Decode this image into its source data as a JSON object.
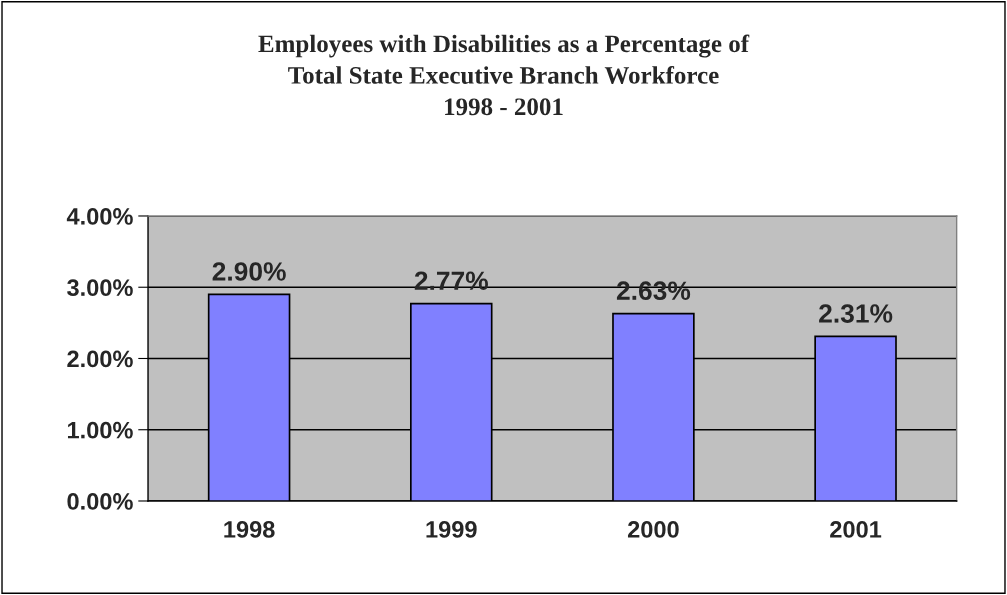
{
  "chart_data": {
    "type": "bar",
    "title": "Employees with Disabilities as a Percentage of\nTotal State Executive Branch Workforce\n1998 - 2001",
    "categories": [
      "1998",
      "1999",
      "2000",
      "2001"
    ],
    "values": [
      2.9,
      2.77,
      2.63,
      2.31
    ],
    "value_labels": [
      "2.90%",
      "2.77%",
      "2.63%",
      "2.31%"
    ],
    "color": "#8080ff",
    "ylim": [
      0,
      4
    ],
    "yticks": [
      {
        "value": 0,
        "label": "0.00%"
      },
      {
        "value": 1,
        "label": "1.00%"
      },
      {
        "value": 2,
        "label": "2.00%"
      },
      {
        "value": 3,
        "label": "3.00%"
      },
      {
        "value": 4,
        "label": "4.00%"
      }
    ],
    "grid": "y",
    "legend": false
  }
}
